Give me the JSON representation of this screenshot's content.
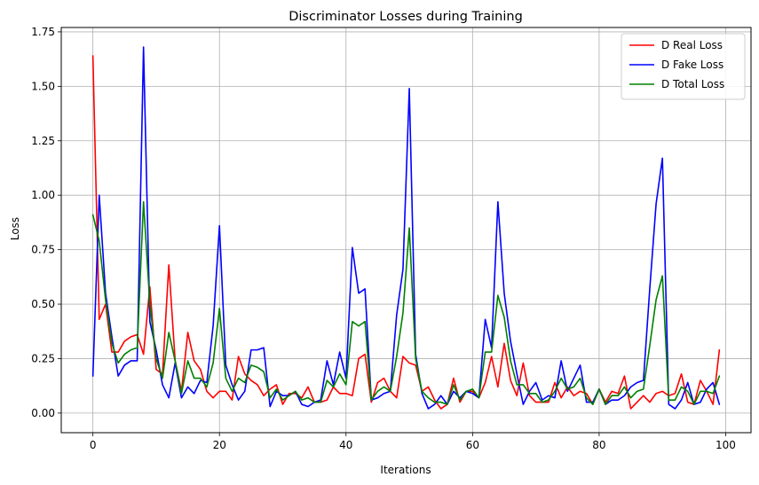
{
  "chart_data": {
    "type": "line",
    "title": "Discriminator Losses during Training",
    "xlabel": "Iterations",
    "ylabel": "Loss",
    "xlim": [
      -5,
      104
    ],
    "ylim": [
      -0.09,
      1.77
    ],
    "xticks": [
      0,
      20,
      40,
      60,
      80,
      100
    ],
    "yticks": [
      0.0,
      0.25,
      0.5,
      0.75,
      1.0,
      1.25,
      1.5,
      1.75
    ],
    "ytick_labels": [
      "0.00",
      "0.25",
      "0.50",
      "0.75",
      "1.00",
      "1.25",
      "1.50",
      "1.75"
    ],
    "grid": true,
    "legend_position": "top-right",
    "x": [
      0,
      1,
      2,
      3,
      4,
      5,
      6,
      7,
      8,
      9,
      10,
      11,
      12,
      13,
      14,
      15,
      16,
      17,
      18,
      19,
      20,
      21,
      22,
      23,
      24,
      25,
      26,
      27,
      28,
      29,
      30,
      31,
      32,
      33,
      34,
      35,
      36,
      37,
      38,
      39,
      40,
      41,
      42,
      43,
      44,
      45,
      46,
      47,
      48,
      49,
      50,
      51,
      52,
      53,
      54,
      55,
      56,
      57,
      58,
      59,
      60,
      61,
      62,
      63,
      64,
      65,
      66,
      67,
      68,
      69,
      70,
      71,
      72,
      73,
      74,
      75,
      76,
      77,
      78,
      79,
      80,
      81,
      82,
      83,
      84,
      85,
      86,
      87,
      88,
      89,
      90,
      91,
      92,
      93,
      94,
      95,
      96,
      97,
      98,
      99
    ],
    "series": [
      {
        "name": "D Real Loss",
        "color": "#ff0000",
        "values": [
          1.64,
          0.43,
          0.5,
          0.28,
          0.28,
          0.33,
          0.35,
          0.36,
          0.27,
          0.58,
          0.2,
          0.18,
          0.68,
          0.24,
          0.1,
          0.37,
          0.24,
          0.2,
          0.1,
          0.07,
          0.1,
          0.1,
          0.06,
          0.26,
          0.18,
          0.15,
          0.13,
          0.08,
          0.11,
          0.13,
          0.04,
          0.09,
          0.09,
          0.07,
          0.12,
          0.05,
          0.05,
          0.06,
          0.12,
          0.09,
          0.09,
          0.08,
          0.25,
          0.27,
          0.05,
          0.14,
          0.16,
          0.1,
          0.07,
          0.26,
          0.23,
          0.22,
          0.1,
          0.12,
          0.06,
          0.02,
          0.04,
          0.16,
          0.05,
          0.1,
          0.1,
          0.07,
          0.14,
          0.26,
          0.12,
          0.32,
          0.15,
          0.08,
          0.23,
          0.08,
          0.05,
          0.05,
          0.05,
          0.14,
          0.07,
          0.12,
          0.08,
          0.1,
          0.09,
          0.04,
          0.11,
          0.05,
          0.1,
          0.09,
          0.17,
          0.02,
          0.05,
          0.08,
          0.05,
          0.09,
          0.1,
          0.08,
          0.09,
          0.18,
          0.05,
          0.04,
          0.15,
          0.1,
          0.04,
          0.29
        ]
      },
      {
        "name": "D Fake Loss",
        "color": "#0000ff",
        "values": [
          0.17,
          1.0,
          0.55,
          0.35,
          0.17,
          0.22,
          0.24,
          0.24,
          1.68,
          0.42,
          0.29,
          0.13,
          0.07,
          0.23,
          0.07,
          0.12,
          0.09,
          0.15,
          0.14,
          0.4,
          0.86,
          0.22,
          0.13,
          0.06,
          0.1,
          0.29,
          0.29,
          0.3,
          0.03,
          0.1,
          0.08,
          0.08,
          0.1,
          0.04,
          0.03,
          0.05,
          0.06,
          0.24,
          0.13,
          0.28,
          0.16,
          0.76,
          0.55,
          0.57,
          0.06,
          0.07,
          0.09,
          0.1,
          0.45,
          0.66,
          1.49,
          0.27,
          0.09,
          0.02,
          0.04,
          0.08,
          0.04,
          0.1,
          0.07,
          0.1,
          0.09,
          0.07,
          0.43,
          0.3,
          0.97,
          0.55,
          0.33,
          0.18,
          0.04,
          0.1,
          0.14,
          0.06,
          0.08,
          0.07,
          0.24,
          0.1,
          0.16,
          0.22,
          0.05,
          0.05,
          0.11,
          0.04,
          0.06,
          0.06,
          0.08,
          0.12,
          0.14,
          0.15,
          0.57,
          0.96,
          1.17,
          0.04,
          0.02,
          0.06,
          0.14,
          0.04,
          0.05,
          0.11,
          0.14,
          0.04
        ]
      },
      {
        "name": "D Total Loss",
        "color": "#008000",
        "values": [
          0.91,
          0.79,
          0.52,
          0.32,
          0.23,
          0.27,
          0.29,
          0.3,
          0.97,
          0.5,
          0.25,
          0.16,
          0.37,
          0.24,
          0.09,
          0.24,
          0.16,
          0.16,
          0.12,
          0.23,
          0.48,
          0.16,
          0.1,
          0.16,
          0.14,
          0.22,
          0.21,
          0.19,
          0.07,
          0.11,
          0.06,
          0.08,
          0.1,
          0.06,
          0.07,
          0.05,
          0.05,
          0.15,
          0.12,
          0.18,
          0.13,
          0.42,
          0.4,
          0.42,
          0.06,
          0.1,
          0.12,
          0.1,
          0.26,
          0.46,
          0.85,
          0.25,
          0.1,
          0.07,
          0.05,
          0.05,
          0.04,
          0.13,
          0.06,
          0.1,
          0.11,
          0.07,
          0.28,
          0.28,
          0.54,
          0.44,
          0.24,
          0.13,
          0.13,
          0.09,
          0.09,
          0.05,
          0.06,
          0.1,
          0.16,
          0.11,
          0.12,
          0.16,
          0.07,
          0.04,
          0.11,
          0.04,
          0.08,
          0.08,
          0.12,
          0.07,
          0.1,
          0.11,
          0.31,
          0.52,
          0.63,
          0.06,
          0.06,
          0.12,
          0.1,
          0.04,
          0.1,
          0.1,
          0.09,
          0.17
        ]
      }
    ]
  }
}
